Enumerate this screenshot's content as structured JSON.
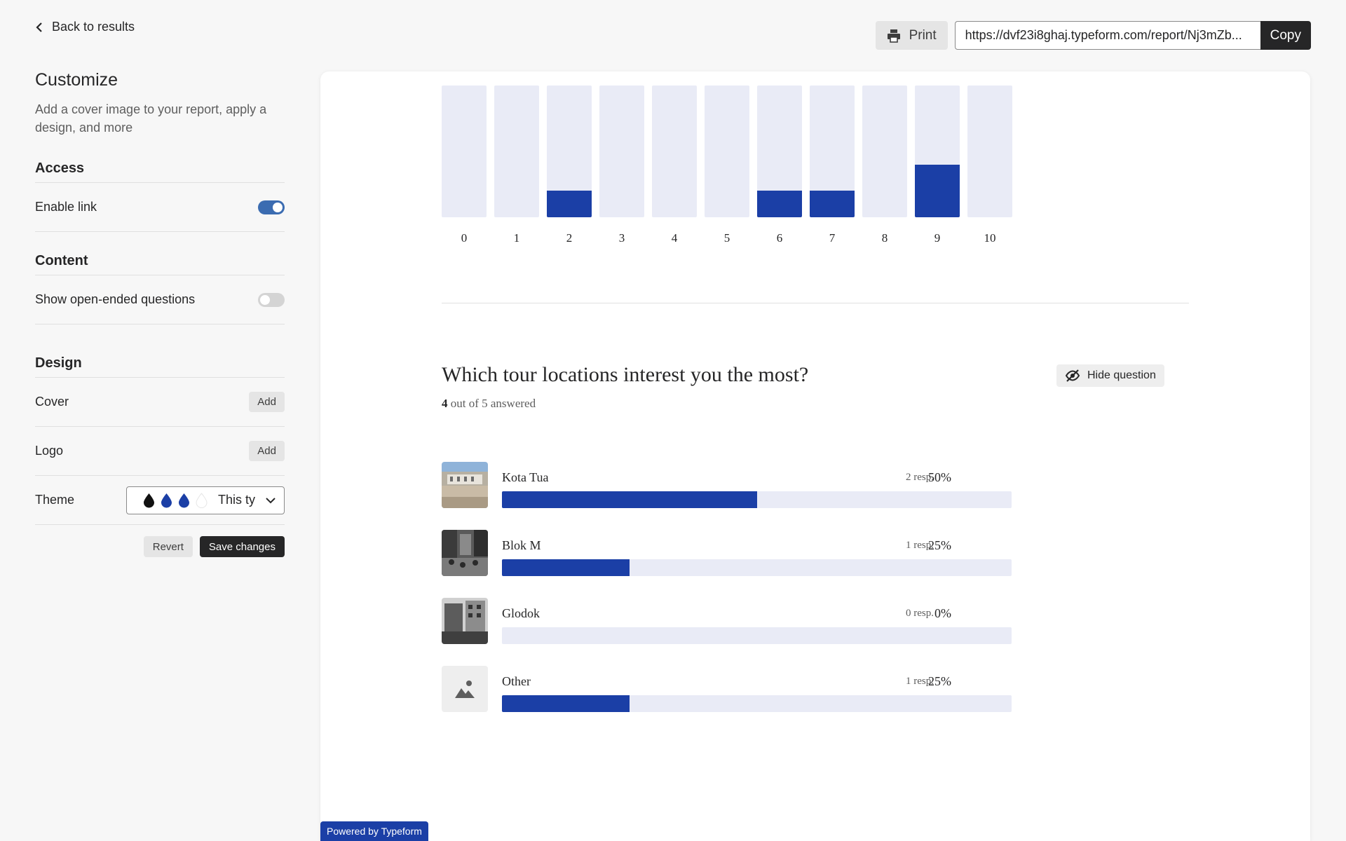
{
  "topbar": {
    "back_label": "Back to results",
    "print_label": "Print",
    "url_value": "https://dvf23i8ghaj.typeform.com/report/Nj3mZb...",
    "copy_label": "Copy"
  },
  "sidebar": {
    "title": "Customize",
    "description": "Add a cover image to your report, apply a design, and more",
    "access": {
      "heading": "Access",
      "enable_link_label": "Enable link",
      "enable_link_on": true
    },
    "content": {
      "heading": "Content",
      "open_ended_label": "Show open-ended questions",
      "open_ended_on": false
    },
    "design": {
      "heading": "Design",
      "cover_label": "Cover",
      "cover_button": "Add",
      "logo_label": "Logo",
      "logo_button": "Add",
      "theme_label": "Theme",
      "theme_value": "This ty",
      "theme_colors": [
        "#111111",
        "#1b3fa6",
        "#1b3fa6",
        "#ffffff"
      ]
    },
    "revert_label": "Revert",
    "save_label": "Save changes"
  },
  "report": {
    "scale_chart": {
      "chart_data": {
        "type": "bar",
        "categories": [
          "0",
          "1",
          "2",
          "3",
          "4",
          "5",
          "6",
          "7",
          "8",
          "9",
          "10"
        ],
        "values": [
          0,
          0,
          1,
          0,
          0,
          0,
          1,
          1,
          0,
          2,
          0
        ],
        "ylim": [
          0,
          5
        ]
      }
    },
    "question": {
      "title": "Which tour locations interest you the most?",
      "answered_count": "4",
      "answered_suffix": "out of 5 answered",
      "hide_label": "Hide question",
      "choices": [
        {
          "label": "Kota Tua",
          "resp": "2 resp.",
          "pct": "50%",
          "value": 50
        },
        {
          "label": "Blok M",
          "resp": "1 resp.",
          "pct": "25%",
          "value": 25
        },
        {
          "label": "Glodok",
          "resp": "0 resp.",
          "pct": "0%",
          "value": 0
        },
        {
          "label": "Other",
          "resp": "1 resp.",
          "pct": "25%",
          "value": 25
        }
      ]
    }
  },
  "footer": {
    "powered_label": "Powered by Typeform"
  },
  "colors": {
    "accent": "#1b3fa6",
    "track": "#e9ebf6",
    "toggle_on": "#3b6cb1"
  }
}
